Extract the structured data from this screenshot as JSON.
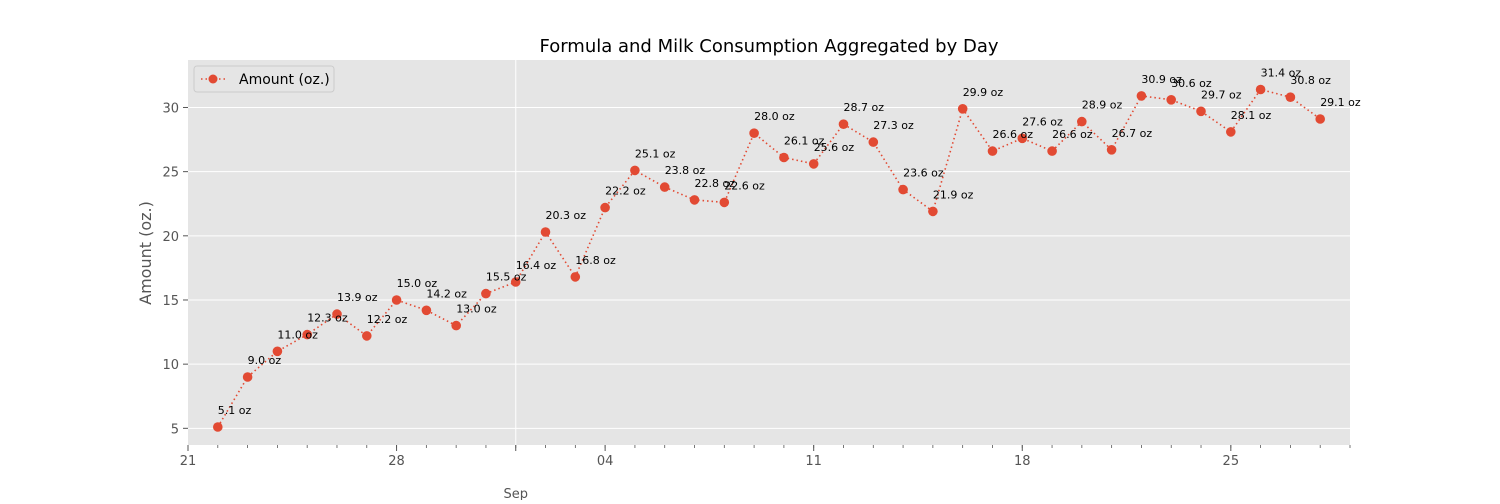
{
  "chart_data": {
    "type": "line",
    "title": "Formula and Milk Consumption Aggregated by Day",
    "xlabel": "",
    "ylabel": "Amount (oz.)",
    "ylim": [
      3.7,
      33.7
    ],
    "xlim": [
      0,
      39
    ],
    "yticks": [
      5,
      10,
      15,
      20,
      25,
      30
    ],
    "x_major_ticks": [
      {
        "pos": 0,
        "label": "21"
      },
      {
        "pos": 7,
        "label": "28"
      },
      {
        "pos": 14,
        "label": "04"
      },
      {
        "pos": 21,
        "label": "11"
      },
      {
        "pos": 28,
        "label": "18"
      },
      {
        "pos": 35,
        "label": "25"
      }
    ],
    "x_month_label": {
      "pos": 11,
      "label": "Sep"
    },
    "month_line_pos": 11,
    "grid": true,
    "legend": {
      "position": "top-left",
      "entries": [
        "Amount (oz.)"
      ]
    },
    "colors": {
      "series": "#e24a33",
      "plot_bg": "#e5e5e5",
      "grid": "#ffffff",
      "text": "#555555"
    },
    "series": [
      {
        "name": "Amount (oz.)",
        "x": [
          1,
          2,
          3,
          4,
          5,
          6,
          7,
          8,
          9,
          10,
          11,
          12,
          13,
          14,
          15,
          16,
          17,
          18,
          19,
          20,
          21,
          22,
          23,
          24,
          25,
          26,
          27,
          28,
          29,
          30,
          31,
          32,
          33,
          34,
          35,
          36,
          37,
          38
        ],
        "values": [
          5.1,
          9.0,
          11.0,
          12.3,
          13.9,
          12.2,
          15.0,
          14.2,
          13.0,
          15.5,
          16.4,
          20.3,
          16.8,
          22.2,
          25.1,
          23.8,
          22.8,
          22.6,
          28.0,
          26.1,
          25.6,
          28.7,
          27.3,
          23.6,
          21.9,
          29.9,
          26.6,
          27.6,
          26.6,
          28.9,
          26.7,
          30.9,
          30.6,
          29.7,
          28.1,
          31.4,
          30.8,
          29.1
        ],
        "labels": [
          "5.1 oz",
          "9.0 oz",
          "11.0 oz",
          "12.3 oz",
          "13.9 oz",
          "12.2 oz",
          "15.0 oz",
          "14.2 oz",
          "13.0 oz",
          "15.5 oz",
          "16.4 oz",
          "20.3 oz",
          "16.8 oz",
          "22.2 oz",
          "25.1 oz",
          "23.8 oz",
          "22.8 oz",
          "22.6 oz",
          "28.0 oz",
          "26.1 oz",
          "25.6 oz",
          "28.7 oz",
          "27.3 oz",
          "23.6 oz",
          "21.9 oz",
          "29.9 oz",
          "26.6 oz",
          "27.6 oz",
          "26.6 oz",
          "28.9 oz",
          "26.7 oz",
          "30.9 oz",
          "30.6 oz",
          "29.7 oz",
          "28.1 oz",
          "31.4 oz",
          "30.8 oz",
          "29.1 oz"
        ]
      }
    ]
  }
}
